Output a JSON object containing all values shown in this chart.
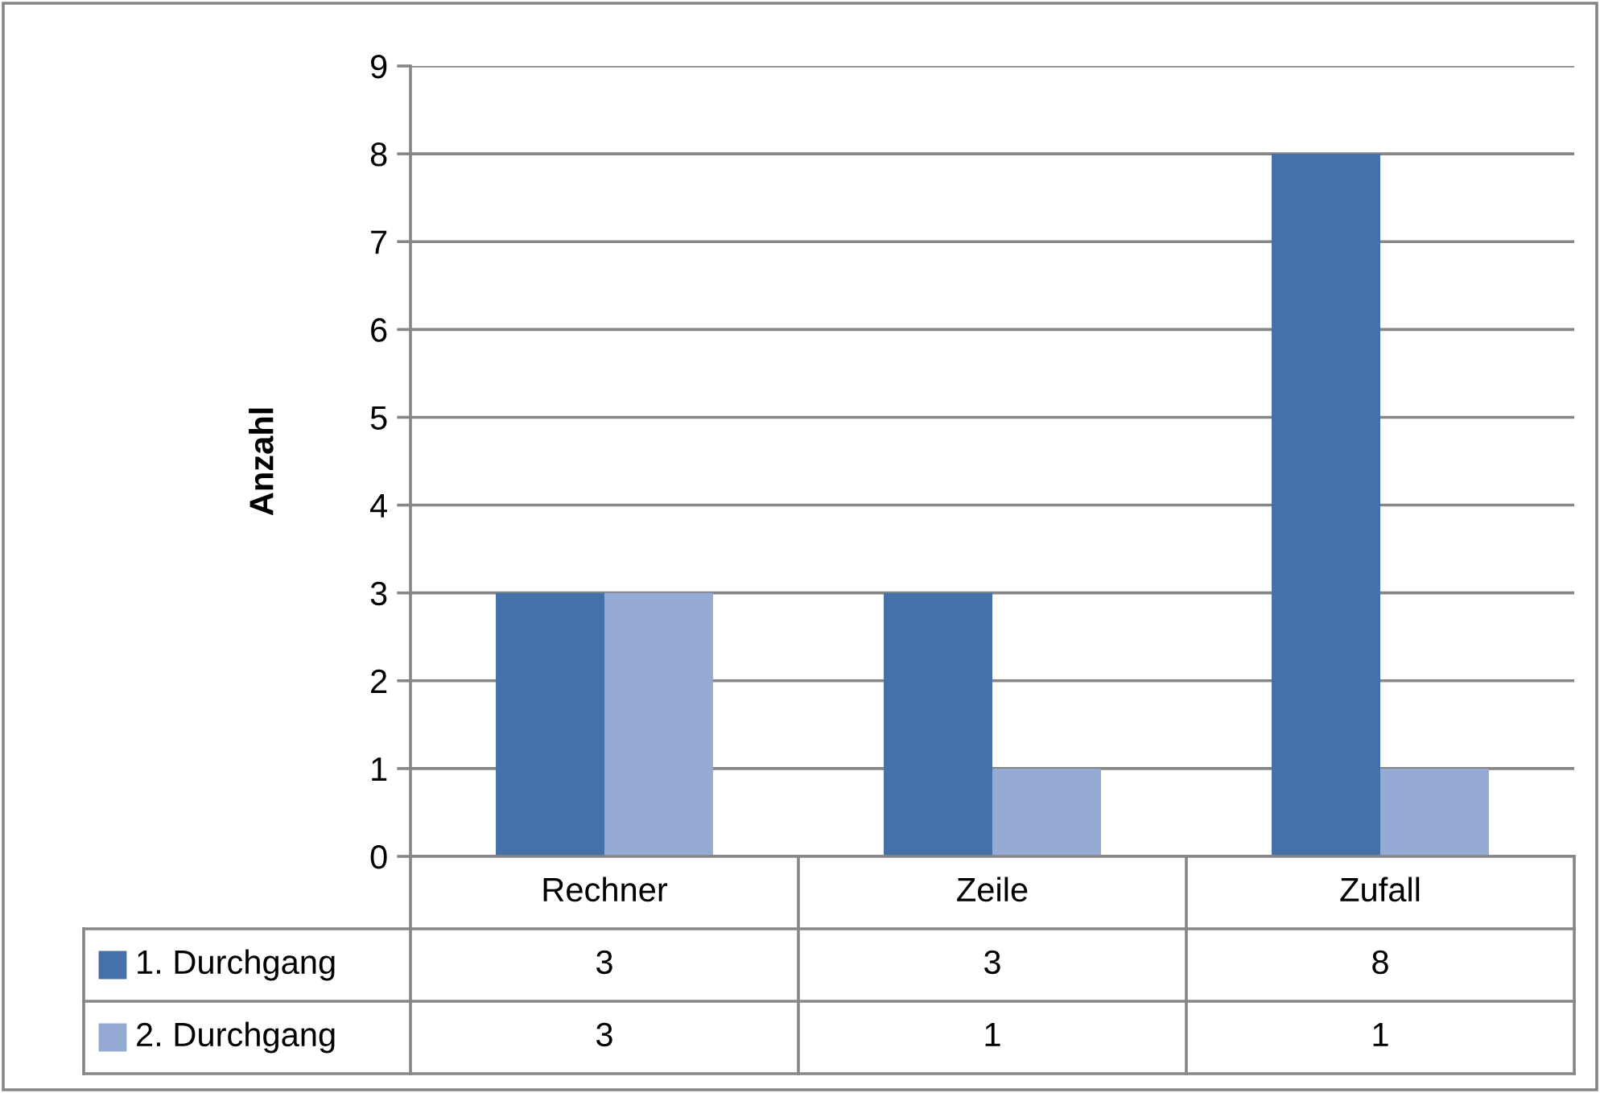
{
  "chart_data": {
    "type": "bar",
    "ylabel": "Anzahl",
    "categories": [
      "Rechner",
      "Zeile",
      "Zufall"
    ],
    "series": [
      {
        "name": "1. Durchgang",
        "color": "#4571a8",
        "values": [
          3,
          3,
          8
        ]
      },
      {
        "name": "2. Durchgang",
        "color": "#95abd3",
        "values": [
          3,
          1,
          1
        ]
      }
    ],
    "ylim": [
      0,
      9
    ],
    "yticks": [
      0,
      1,
      2,
      3,
      4,
      5,
      6,
      7,
      8,
      9
    ],
    "grid": "y",
    "legend": "bottom",
    "data_labels": true
  }
}
